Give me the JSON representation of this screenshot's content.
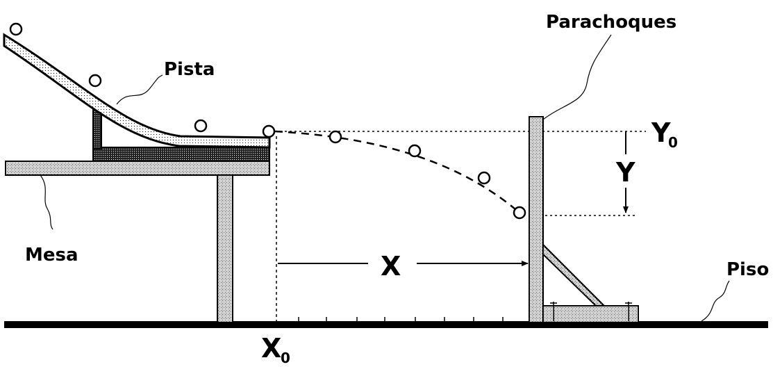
{
  "labels": {
    "pista": "Pista",
    "parachoques": "Parachoques",
    "mesa": "Mesa",
    "piso": "Piso",
    "x": "X",
    "y": "Y",
    "y0_main": "Y",
    "y0_sub": "0",
    "x0_main": "X",
    "x0_sub": "0"
  }
}
